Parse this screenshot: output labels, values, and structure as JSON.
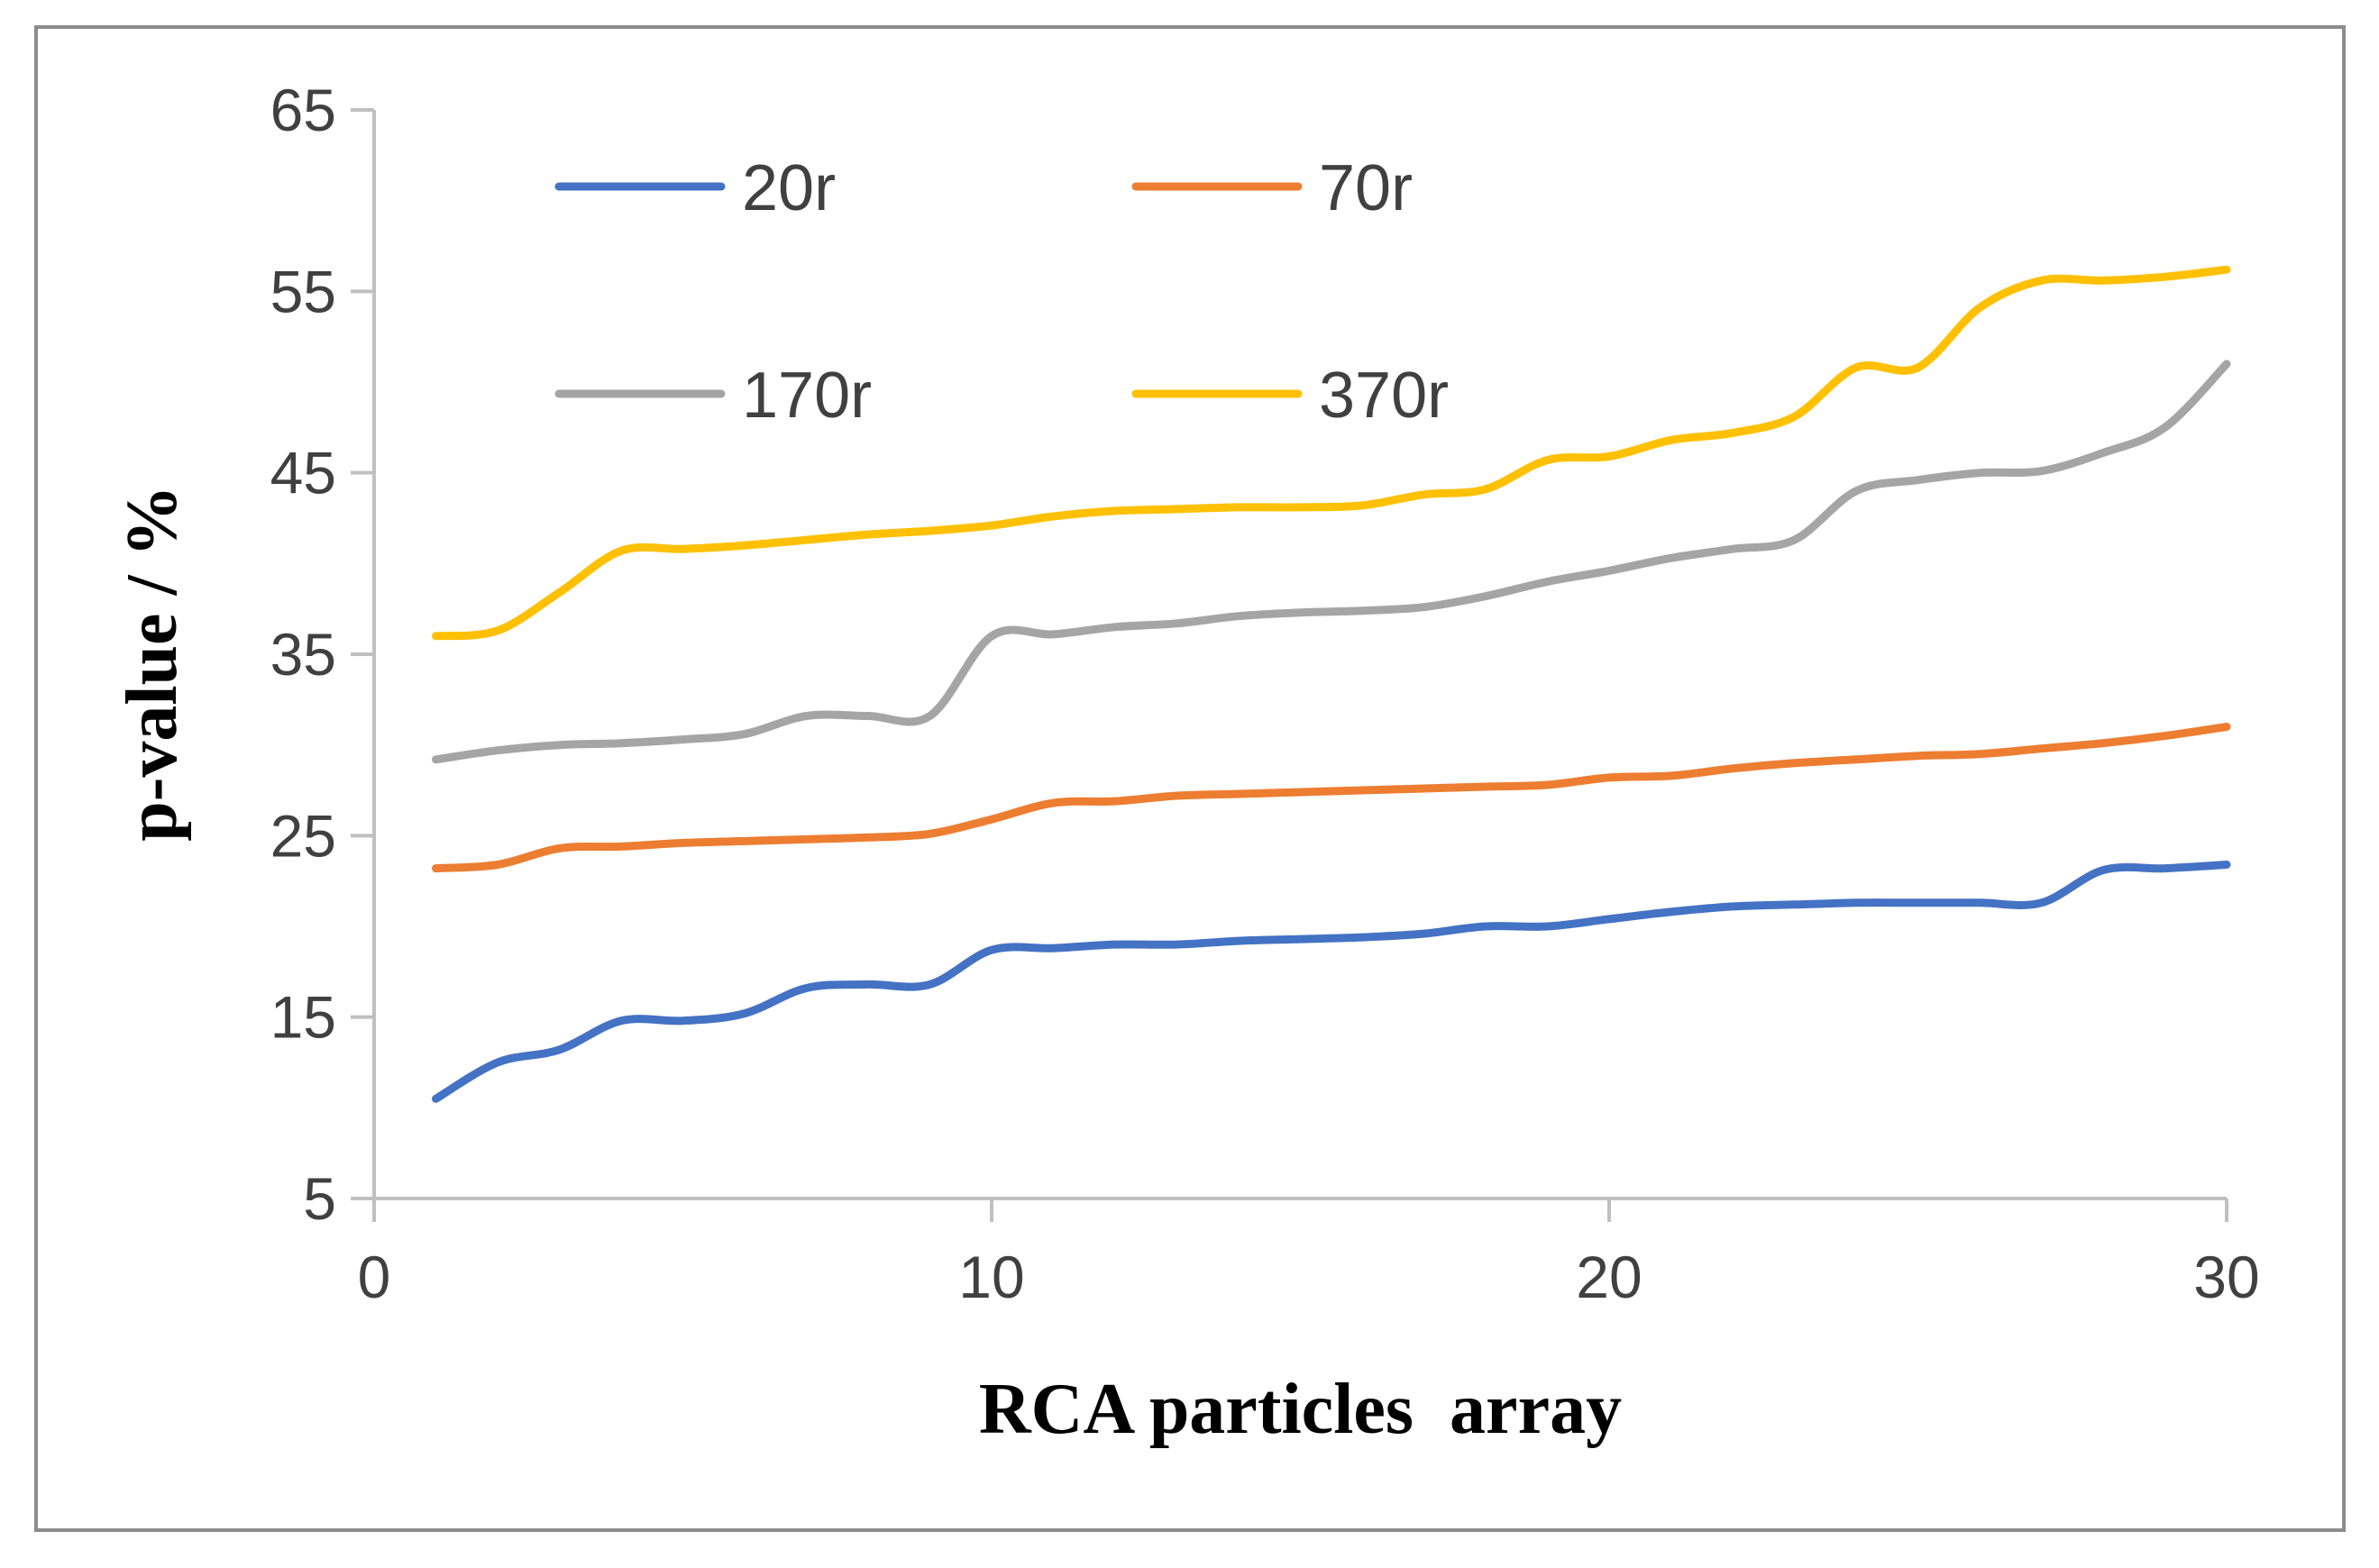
{
  "chart_data": {
    "type": "line",
    "title": "",
    "xlabel": "RCA particles  array",
    "ylabel": "p-value / %",
    "xlim": [
      0,
      30
    ],
    "ylim": [
      5,
      65
    ],
    "xticks": [
      0,
      10,
      20,
      30
    ],
    "yticks": [
      5,
      15,
      25,
      35,
      45,
      55,
      65
    ],
    "grid": false,
    "legend_position": "top-left, inside plot, two columns",
    "x": [
      1,
      2,
      3,
      4,
      5,
      6,
      7,
      8,
      9,
      10,
      11,
      12,
      13,
      14,
      15,
      16,
      17,
      18,
      19,
      20,
      21,
      22,
      23,
      24,
      25,
      26,
      27,
      28,
      29,
      30
    ],
    "series": [
      {
        "name": "20r",
        "color": "#4472C4",
        "values": [
          10.5,
          12.5,
          13.2,
          14.8,
          14.8,
          15.2,
          16.6,
          16.8,
          16.8,
          18.7,
          18.8,
          19.0,
          19.0,
          19.2,
          19.3,
          19.4,
          19.6,
          20.0,
          20.0,
          20.4,
          20.8,
          21.1,
          21.2,
          21.3,
          21.3,
          21.3,
          21.3,
          23.1,
          23.2,
          23.4
        ]
      },
      {
        "name": "70r",
        "color": "#ED7D31",
        "values": [
          23.2,
          23.4,
          24.3,
          24.4,
          24.6,
          24.7,
          24.8,
          24.9,
          25.1,
          25.9,
          26.8,
          26.9,
          27.2,
          27.3,
          27.4,
          27.5,
          27.6,
          27.7,
          27.8,
          28.2,
          28.3,
          28.7,
          29.0,
          29.2,
          29.4,
          29.5,
          29.8,
          30.1,
          30.5,
          31.0
        ]
      },
      {
        "name": "170r",
        "color": "#A5A5A5",
        "values": [
          29.2,
          29.7,
          30.0,
          30.1,
          30.3,
          30.6,
          31.6,
          31.6,
          31.6,
          36.0,
          36.1,
          36.5,
          36.7,
          37.1,
          37.3,
          37.4,
          37.6,
          38.2,
          39.0,
          39.6,
          40.3,
          40.8,
          41.3,
          44.0,
          44.6,
          45.0,
          45.1,
          46.1,
          47.5,
          51.0
        ]
      },
      {
        "name": "370r",
        "color": "#FFC000",
        "values": [
          36.0,
          36.3,
          38.4,
          40.7,
          40.8,
          41.0,
          41.3,
          41.6,
          41.8,
          42.1,
          42.6,
          42.9,
          43.0,
          43.1,
          43.1,
          43.2,
          43.8,
          44.1,
          45.7,
          45.9,
          46.8,
          47.2,
          48.1,
          50.8,
          50.8,
          54.1,
          55.6,
          55.6,
          55.8,
          56.2
        ]
      }
    ]
  }
}
